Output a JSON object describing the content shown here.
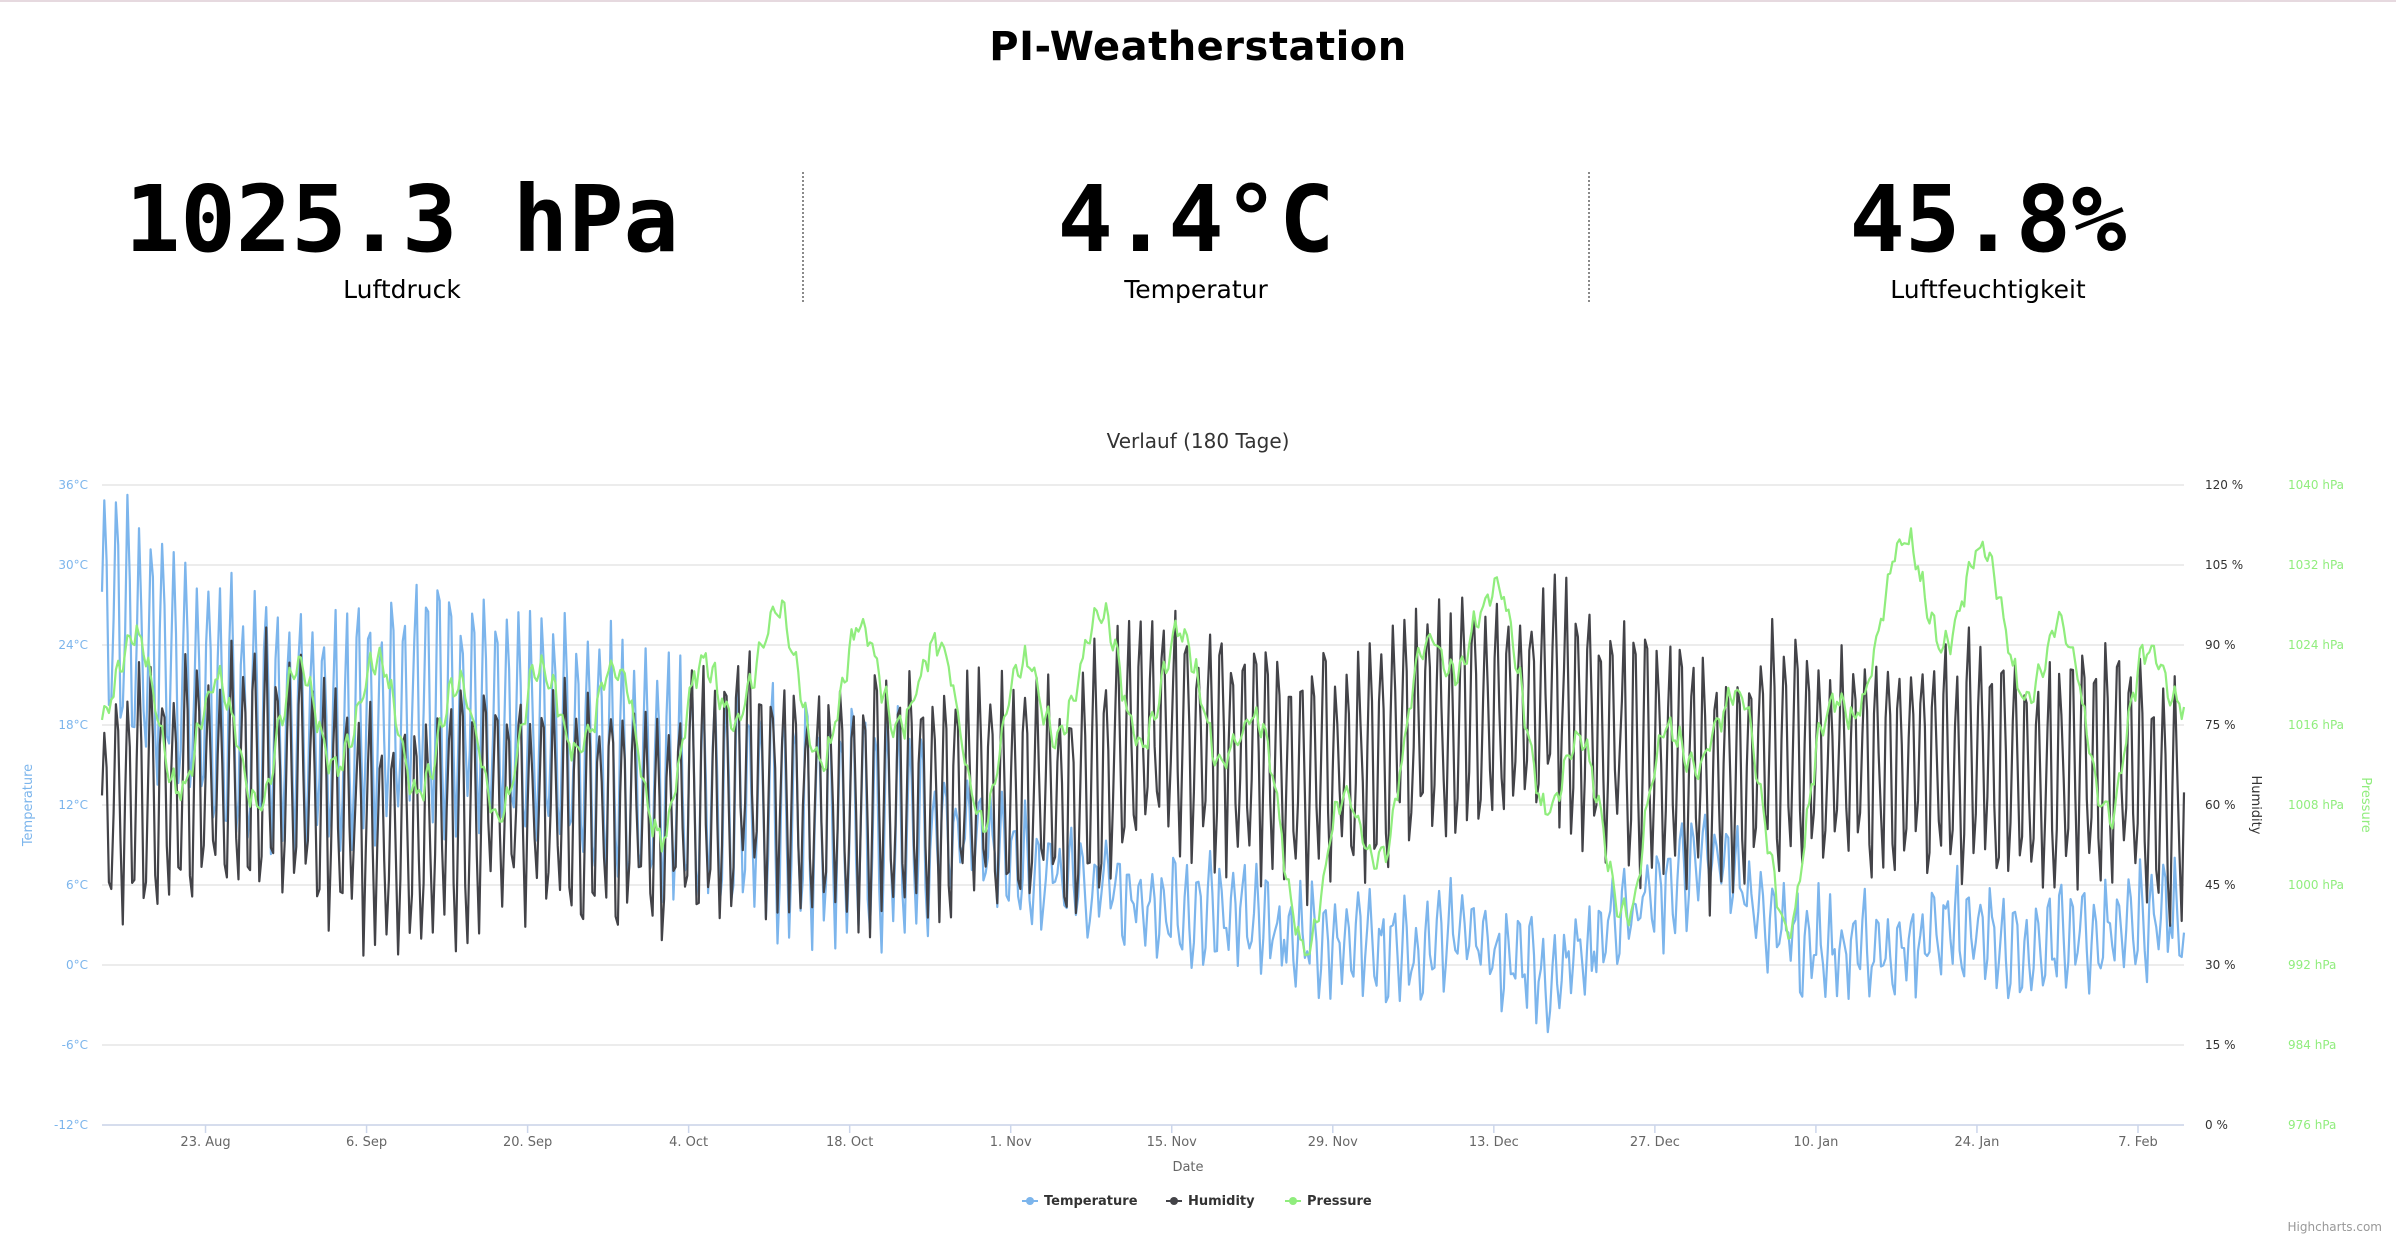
{
  "page_title": "PI-Weatherstation",
  "stats": [
    {
      "value": "1025.3 hPa",
      "label": "Luftdruck"
    },
    {
      "value": "4.4°C",
      "label": "Temperatur"
    },
    {
      "value": "45.8%",
      "label": "Luftfeuchtigkeit"
    }
  ],
  "credits": "Highcharts.com",
  "colors": {
    "temperature": "#7cb5ec",
    "humidity": "#434348",
    "pressure": "#90ed7d"
  },
  "chart_data": {
    "type": "line",
    "title": "Verlauf (180 Tage)",
    "xlabel": "Date",
    "x_range": [
      "2021-08-14",
      "2022-02-11"
    ],
    "x_ticks": [
      "23. Aug",
      "6. Sep",
      "20. Sep",
      "4. Oct",
      "18. Oct",
      "1. Nov",
      "15. Nov",
      "29. Nov",
      "13. Dec",
      "27. Dec",
      "10. Jan",
      "24. Jan",
      "7. Feb"
    ],
    "y_axes": [
      {
        "id": "temperature",
        "title": "Temperature",
        "side": "left",
        "range": [
          -12,
          36
        ],
        "ticks": [
          "-12°C",
          "-6°C",
          "0°C",
          "6°C",
          "12°C",
          "18°C",
          "24°C",
          "30°C",
          "36°C"
        ]
      },
      {
        "id": "humidity",
        "title": "Humidity",
        "side": "right",
        "range": [
          0,
          120
        ],
        "ticks": [
          "0 %",
          "15 %",
          "30 %",
          "45 %",
          "60 %",
          "75 %",
          "90 %",
          "105 %",
          "120 %"
        ]
      },
      {
        "id": "pressure",
        "title": "Pressure",
        "side": "right",
        "range": [
          976,
          1040
        ],
        "ticks": [
          "976 hPa",
          "984 hPa",
          "992 hPa",
          "1000 hPa",
          "1008 hPa",
          "1016 hPa",
          "1024 hPa",
          "1032 hPa",
          "1040 hPa"
        ]
      }
    ],
    "grid": true,
    "legend": "bottom-center",
    "series": [
      {
        "name": "Temperature",
        "axis": "temperature",
        "color": "#7cb5ec",
        "x": [
          "2021-08-14",
          "2021-08-21",
          "2021-08-28",
          "2021-09-04",
          "2021-09-11",
          "2021-09-18",
          "2021-09-25",
          "2021-10-02",
          "2021-10-09",
          "2021-10-16",
          "2021-10-23",
          "2021-10-30",
          "2021-11-06",
          "2021-11-13",
          "2021-11-20",
          "2021-11-27",
          "2021-12-04",
          "2021-12-11",
          "2021-12-18",
          "2021-12-25",
          "2022-01-01",
          "2022-01-08",
          "2022-01-15",
          "2022-01-22",
          "2022-01-29",
          "2022-02-05",
          "2022-02-11"
        ],
        "values": [
          27,
          21,
          18,
          17,
          20,
          18,
          16,
          14,
          12,
          11,
          10,
          9,
          6,
          5,
          4,
          2,
          1,
          2,
          -1,
          4,
          8,
          2,
          1,
          3,
          1,
          3,
          4
        ]
      },
      {
        "name": "Humidity",
        "axis": "humidity",
        "color": "#434348",
        "x": [
          "2021-08-14",
          "2021-08-21",
          "2021-08-28",
          "2021-09-04",
          "2021-09-11",
          "2021-09-18",
          "2021-09-25",
          "2021-10-02",
          "2021-10-09",
          "2021-10-16",
          "2021-10-23",
          "2021-10-30",
          "2021-11-06",
          "2021-11-13",
          "2021-11-20",
          "2021-11-27",
          "2021-12-04",
          "2021-12-11",
          "2021-12-18",
          "2021-12-25",
          "2022-01-01",
          "2022-01-08",
          "2022-01-15",
          "2022-01-22",
          "2022-01-29",
          "2022-02-05",
          "2022-02-11"
        ],
        "values": [
          60,
          65,
          68,
          58,
          55,
          62,
          60,
          58,
          65,
          60,
          62,
          64,
          60,
          76,
          72,
          67,
          72,
          78,
          80,
          70,
          65,
          72,
          68,
          70,
          65,
          68,
          58
        ]
      },
      {
        "name": "Pressure",
        "axis": "pressure",
        "color": "#90ed7d",
        "x": [
          "2021-08-14",
          "2021-08-21",
          "2021-08-28",
          "2021-09-04",
          "2021-09-11",
          "2021-09-18",
          "2021-09-25",
          "2021-10-02",
          "2021-10-09",
          "2021-10-16",
          "2021-10-23",
          "2021-10-30",
          "2021-11-06",
          "2021-11-13",
          "2021-11-20",
          "2021-11-27",
          "2021-12-04",
          "2021-12-11",
          "2021-12-18",
          "2021-12-25",
          "2022-01-01",
          "2022-01-08",
          "2022-01-15",
          "2022-01-22",
          "2022-01-29",
          "2022-02-05",
          "2022-02-11"
        ],
        "values": [
          1022,
          1015,
          1014,
          1018,
          1015,
          1013,
          1020,
          1010,
          1024,
          1018,
          1022,
          1012,
          1022,
          1020,
          1018,
          998,
          1010,
          1030,
          1012,
          1002,
          1020,
          1000,
          1028,
          1030,
          1024,
          1012,
          1024
        ]
      }
    ]
  }
}
